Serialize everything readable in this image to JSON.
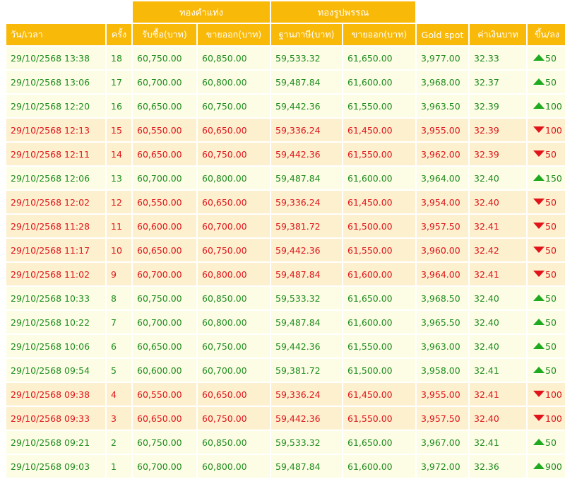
{
  "groups": {
    "bar": "ทองคำแท่ง",
    "ornament": "ทองรูปพรรณ"
  },
  "columns": {
    "datetime": "วัน/เวลา",
    "round": "ครั้ง",
    "bar_buy": "รับซื้อ(บาท)",
    "bar_sell": "ขายออก(บาท)",
    "orn_base": "ฐานภาษี(บาท)",
    "orn_sell": "ขายออก(บาท)",
    "gold_spot": "Gold spot",
    "fx": "ค่าเงินบาท",
    "change": "ขึ้น/ลง"
  },
  "colors": {
    "header": "#f9b908",
    "up_row": "#fdfde5",
    "down_row": "#fdf0ce",
    "up_text": "#1e8c1e",
    "down_text": "#e0141a"
  },
  "rows": [
    {
      "datetime": "29/10/2568 13:38",
      "round": "18",
      "bar_buy": "60,750.00",
      "bar_sell": "60,850.00",
      "orn_base": "59,533.32",
      "orn_sell": "61,650.00",
      "gold_spot": "3,977.00",
      "fx": "32.33",
      "direction": "up",
      "change": "50"
    },
    {
      "datetime": "29/10/2568 13:06",
      "round": "17",
      "bar_buy": "60,700.00",
      "bar_sell": "60,800.00",
      "orn_base": "59,487.84",
      "orn_sell": "61,600.00",
      "gold_spot": "3,968.00",
      "fx": "32.37",
      "direction": "up",
      "change": "50"
    },
    {
      "datetime": "29/10/2568 12:20",
      "round": "16",
      "bar_buy": "60,650.00",
      "bar_sell": "60,750.00",
      "orn_base": "59,442.36",
      "orn_sell": "61,550.00",
      "gold_spot": "3,963.50",
      "fx": "32.39",
      "direction": "up",
      "change": "100"
    },
    {
      "datetime": "29/10/2568 12:13",
      "round": "15",
      "bar_buy": "60,550.00",
      "bar_sell": "60,650.00",
      "orn_base": "59,336.24",
      "orn_sell": "61,450.00",
      "gold_spot": "3,955.00",
      "fx": "32.39",
      "direction": "down",
      "change": "100"
    },
    {
      "datetime": "29/10/2568 12:11",
      "round": "14",
      "bar_buy": "60,650.00",
      "bar_sell": "60,750.00",
      "orn_base": "59,442.36",
      "orn_sell": "61,550.00",
      "gold_spot": "3,962.00",
      "fx": "32.39",
      "direction": "down",
      "change": "50"
    },
    {
      "datetime": "29/10/2568 12:06",
      "round": "13",
      "bar_buy": "60,700.00",
      "bar_sell": "60,800.00",
      "orn_base": "59,487.84",
      "orn_sell": "61,600.00",
      "gold_spot": "3,964.00",
      "fx": "32.40",
      "direction": "up",
      "change": "150"
    },
    {
      "datetime": "29/10/2568 12:02",
      "round": "12",
      "bar_buy": "60,550.00",
      "bar_sell": "60,650.00",
      "orn_base": "59,336.24",
      "orn_sell": "61,450.00",
      "gold_spot": "3,954.00",
      "fx": "32.40",
      "direction": "down",
      "change": "50"
    },
    {
      "datetime": "29/10/2568 11:28",
      "round": "11",
      "bar_buy": "60,600.00",
      "bar_sell": "60,700.00",
      "orn_base": "59,381.72",
      "orn_sell": "61,500.00",
      "gold_spot": "3,957.50",
      "fx": "32.41",
      "direction": "down",
      "change": "50"
    },
    {
      "datetime": "29/10/2568 11:17",
      "round": "10",
      "bar_buy": "60,650.00",
      "bar_sell": "60,750.00",
      "orn_base": "59,442.36",
      "orn_sell": "61,550.00",
      "gold_spot": "3,960.00",
      "fx": "32.42",
      "direction": "down",
      "change": "50"
    },
    {
      "datetime": "29/10/2568 11:02",
      "round": "9",
      "bar_buy": "60,700.00",
      "bar_sell": "60,800.00",
      "orn_base": "59,487.84",
      "orn_sell": "61,600.00",
      "gold_spot": "3,964.00",
      "fx": "32.41",
      "direction": "down",
      "change": "50"
    },
    {
      "datetime": "29/10/2568 10:33",
      "round": "8",
      "bar_buy": "60,750.00",
      "bar_sell": "60,850.00",
      "orn_base": "59,533.32",
      "orn_sell": "61,650.00",
      "gold_spot": "3,968.50",
      "fx": "32.40",
      "direction": "up",
      "change": "50"
    },
    {
      "datetime": "29/10/2568 10:22",
      "round": "7",
      "bar_buy": "60,700.00",
      "bar_sell": "60,800.00",
      "orn_base": "59,487.84",
      "orn_sell": "61,600.00",
      "gold_spot": "3,965.50",
      "fx": "32.40",
      "direction": "up",
      "change": "50"
    },
    {
      "datetime": "29/10/2568 10:06",
      "round": "6",
      "bar_buy": "60,650.00",
      "bar_sell": "60,750.00",
      "orn_base": "59,442.36",
      "orn_sell": "61,550.00",
      "gold_spot": "3,963.00",
      "fx": "32.40",
      "direction": "up",
      "change": "50"
    },
    {
      "datetime": "29/10/2568 09:54",
      "round": "5",
      "bar_buy": "60,600.00",
      "bar_sell": "60,700.00",
      "orn_base": "59,381.72",
      "orn_sell": "61,500.00",
      "gold_spot": "3,958.00",
      "fx": "32.41",
      "direction": "up",
      "change": "50"
    },
    {
      "datetime": "29/10/2568 09:38",
      "round": "4",
      "bar_buy": "60,550.00",
      "bar_sell": "60,650.00",
      "orn_base": "59,336.24",
      "orn_sell": "61,450.00",
      "gold_spot": "3,955.00",
      "fx": "32.41",
      "direction": "down",
      "change": "100"
    },
    {
      "datetime": "29/10/2568 09:33",
      "round": "3",
      "bar_buy": "60,650.00",
      "bar_sell": "60,750.00",
      "orn_base": "59,442.36",
      "orn_sell": "61,550.00",
      "gold_spot": "3,957.50",
      "fx": "32.40",
      "direction": "down",
      "change": "100"
    },
    {
      "datetime": "29/10/2568 09:21",
      "round": "2",
      "bar_buy": "60,750.00",
      "bar_sell": "60,850.00",
      "orn_base": "59,533.32",
      "orn_sell": "61,650.00",
      "gold_spot": "3,967.00",
      "fx": "32.41",
      "direction": "up",
      "change": "50"
    },
    {
      "datetime": "29/10/2568 09:03",
      "round": "1",
      "bar_buy": "60,700.00",
      "bar_sell": "60,800.00",
      "orn_base": "59,487.84",
      "orn_sell": "61,600.00",
      "gold_spot": "3,972.00",
      "fx": "32.36",
      "direction": "up",
      "change": "900"
    }
  ]
}
